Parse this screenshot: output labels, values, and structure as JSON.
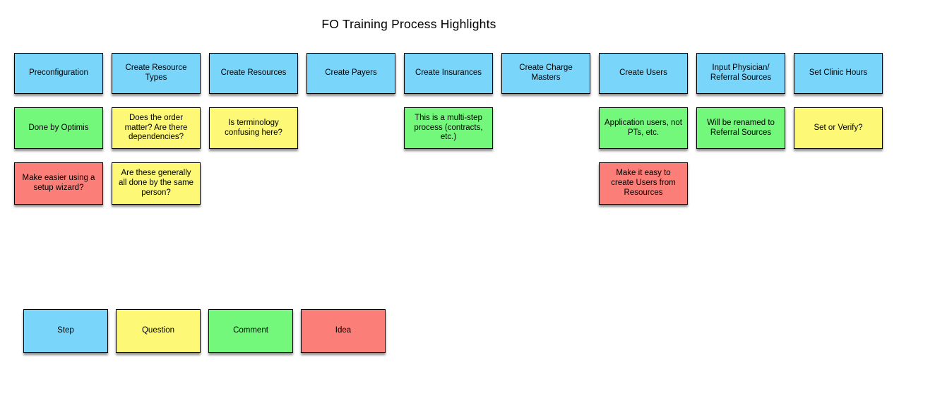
{
  "title": "FO Training Process Highlights",
  "palette": {
    "step": "#7AD5FB",
    "question": "#FDF876",
    "comment": "#73F87C",
    "idea": "#FC7E78"
  },
  "board": {
    "columns": 9,
    "notes": [
      {
        "text": "Preconfiguration",
        "type": "step",
        "col": 1,
        "row": 1
      },
      {
        "text": "Create Resource Types",
        "type": "step",
        "col": 2,
        "row": 1
      },
      {
        "text": "Create Resources",
        "type": "step",
        "col": 3,
        "row": 1
      },
      {
        "text": "Create Payers",
        "type": "step",
        "col": 4,
        "row": 1
      },
      {
        "text": "Create Insurances",
        "type": "step",
        "col": 5,
        "row": 1
      },
      {
        "text": "Create Charge Masters",
        "type": "step",
        "col": 6,
        "row": 1
      },
      {
        "text": "Create Users",
        "type": "step",
        "col": 7,
        "row": 1
      },
      {
        "text": "Input Physician/ Referral Sources",
        "type": "step",
        "col": 8,
        "row": 1
      },
      {
        "text": "Set Clinic Hours",
        "type": "step",
        "col": 9,
        "row": 1
      },
      {
        "text": "Done by Optimis",
        "type": "comment",
        "col": 1,
        "row": 2
      },
      {
        "text": "Does the order matter? Are there dependencies?",
        "type": "question",
        "col": 2,
        "row": 2
      },
      {
        "text": "Is terminology confusing here?",
        "type": "question",
        "col": 3,
        "row": 2
      },
      {
        "text": "This is a multi-step process (contracts, etc.)",
        "type": "comment",
        "col": 5,
        "row": 2
      },
      {
        "text": "Application users, not PTs, etc.",
        "type": "comment",
        "col": 7,
        "row": 2
      },
      {
        "text": "Will be renamed to Referral Sources",
        "type": "comment",
        "col": 8,
        "row": 2
      },
      {
        "text": "Set or Verify?",
        "type": "question",
        "col": 9,
        "row": 2
      },
      {
        "text": "Make easier using a setup wizard?",
        "type": "idea",
        "col": 1,
        "row": 3
      },
      {
        "text": "Are these generally all done by the same person?",
        "type": "question",
        "col": 2,
        "row": 3
      },
      {
        "text": "Make it easy to create Users from Resources",
        "type": "idea",
        "col": 7,
        "row": 3
      }
    ]
  },
  "legend": {
    "items": [
      {
        "label": "Step",
        "type": "step"
      },
      {
        "label": "Question",
        "type": "question"
      },
      {
        "label": "Comment",
        "type": "comment"
      },
      {
        "label": "Idea",
        "type": "idea"
      }
    ]
  }
}
